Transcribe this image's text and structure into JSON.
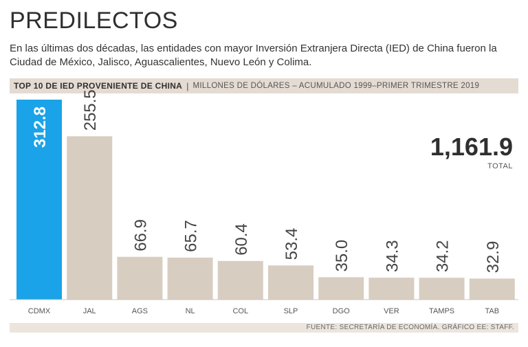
{
  "title": "PREDILECTOS",
  "subtitle": "En las últimas dos décadas, las entidades con mayor Inversión Extranjera Directa (IED) de China fueron la Ciudad de México, Jalisco, Aguascalientes, Nuevo León y Colima.",
  "header": {
    "bold": "TOP 10 DE IED PROVENIENTE DE CHINA",
    "separator": "|",
    "light": "MILLONES DE DÓLARES – ACUMULADO 1999–PRIMER TRIMESTRE 2019"
  },
  "total": {
    "value": "1,161.9",
    "label": "TOTAL"
  },
  "source": "FUENTE: SECRETARÍA DE ECONOMÍA. GRÁFICO EE: STAFF.",
  "colors": {
    "highlight": "#1aa3e8",
    "bar": "#d8cdc1",
    "label_on_bar": "#ffffff",
    "label": "#444444"
  },
  "chart_data": {
    "type": "bar",
    "title": "TOP 10 DE IED PROVENIENTE DE CHINA",
    "ylabel": "MILLONES DE DÓLARES",
    "categories": [
      "CDMX",
      "JAL",
      "AGS",
      "NL",
      "COL",
      "SLP",
      "DGO",
      "VER",
      "TAMPS",
      "TAB"
    ],
    "values": [
      312.8,
      255.5,
      66.9,
      65.7,
      60.4,
      53.4,
      35.0,
      34.3,
      34.2,
      32.9
    ],
    "value_labels": [
      "312.8",
      "255.5",
      "66.9",
      "65.7",
      "60.4",
      "53.4",
      "35.0",
      "34.3",
      "34.2",
      "32.9"
    ],
    "highlight_index": 0,
    "ylim": [
      0,
      312.8
    ],
    "grid": false,
    "legend": "none"
  }
}
